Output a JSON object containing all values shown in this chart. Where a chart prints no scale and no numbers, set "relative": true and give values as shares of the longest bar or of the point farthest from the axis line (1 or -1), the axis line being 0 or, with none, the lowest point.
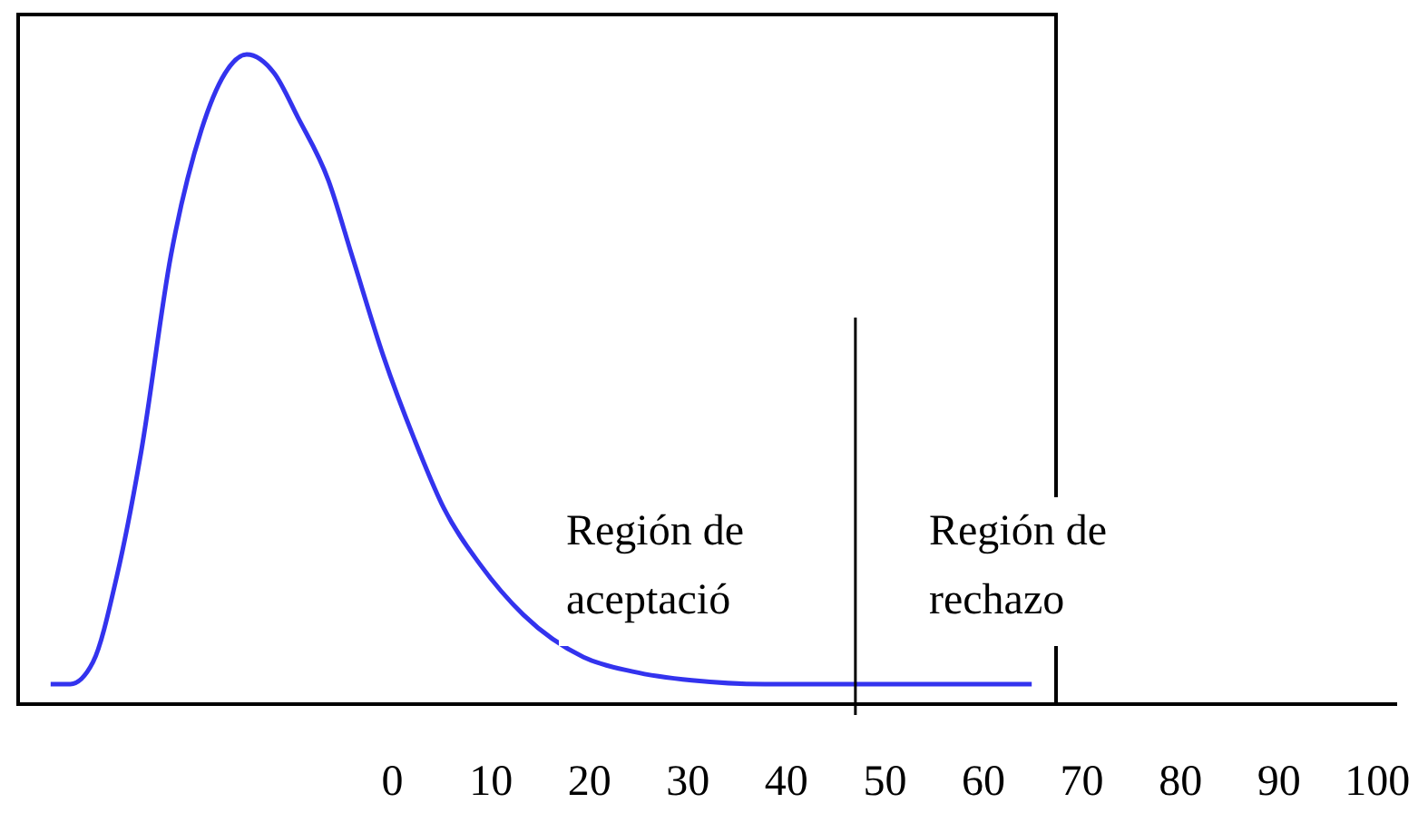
{
  "chart_data": {
    "type": "line",
    "relative": true,
    "x": [
      -34.7,
      -32.7,
      -30.4,
      -28.0,
      -25.5,
      -22.5,
      -19.4,
      -17.0,
      -14.8,
      -12.0,
      -9.6,
      -6.5,
      -4.1,
      -0.9,
      2.2,
      5.2,
      8.9,
      13.3,
      19.4,
      24.4,
      30.4,
      37.8,
      64.9
    ],
    "series": [
      {
        "color": "#3333ee",
        "values": [
          0,
          0,
          0.035,
          0.17,
          0.37,
          0.68,
          0.88,
          0.97,
          1,
          0.97,
          0.9,
          0.8,
          0.68,
          0.52,
          0.39,
          0.28,
          0.19,
          0.11,
          0.043,
          0.02,
          0.006,
          0,
          0
        ]
      }
    ],
    "xlim": [
      -38,
      102
    ],
    "xticks": [
      0,
      10,
      20,
      30,
      40,
      50,
      60,
      70,
      80,
      90,
      100
    ],
    "ref_lines": [
      {
        "axis": "x",
        "value": 47,
        "color": "#000000"
      }
    ],
    "annotations": [
      "Región de aceptació",
      "Región de rechazo"
    ],
    "grid": false,
    "marker": "none",
    "line_style": "solid"
  }
}
